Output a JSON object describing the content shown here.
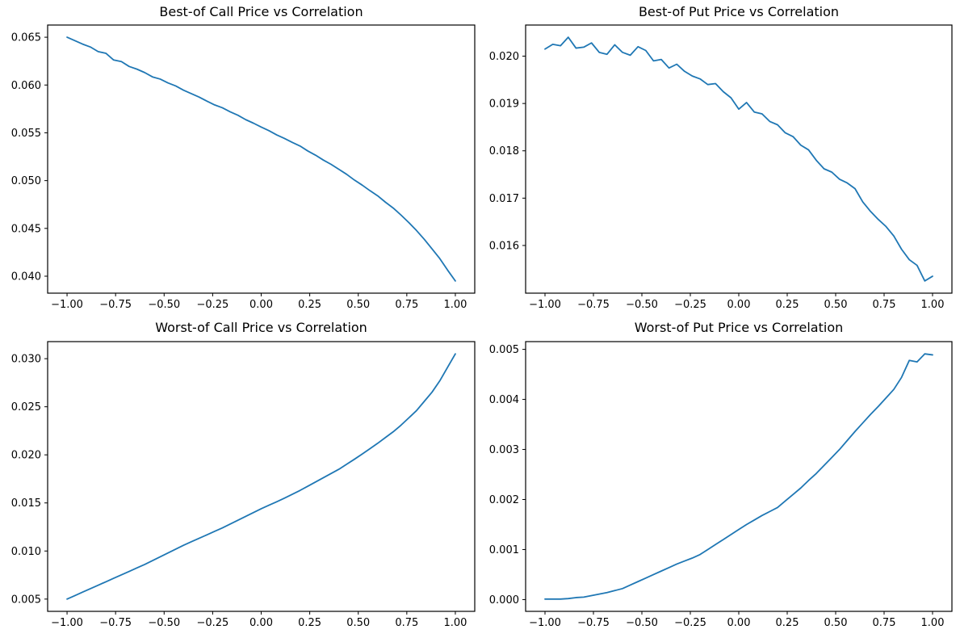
{
  "figure": {
    "background_color": "#ffffff",
    "text_color": "#000000",
    "line_color": "#1f77b4"
  },
  "chart_data": {
    "type": "line",
    "layout_note": "2x2 grid of subplots, no grid lines, no legend, shared x variable (correlation)",
    "xlabel": "",
    "xlim": [
      -1.1,
      1.1
    ],
    "xticks": [
      -1.0,
      -0.75,
      -0.5,
      -0.25,
      0.0,
      0.25,
      0.5,
      0.75,
      1.0
    ],
    "xtick_labels": [
      "−1.00",
      "−0.75",
      "−0.50",
      "−0.25",
      "0.00",
      "0.25",
      "0.50",
      "0.75",
      "1.00"
    ],
    "x": [
      -1.0,
      -0.96,
      -0.92,
      -0.88,
      -0.84,
      -0.8,
      -0.76,
      -0.72,
      -0.68,
      -0.64,
      -0.6,
      -0.56,
      -0.52,
      -0.48,
      -0.44,
      -0.4,
      -0.36,
      -0.32,
      -0.28,
      -0.24,
      -0.2,
      -0.16,
      -0.12,
      -0.08,
      -0.04,
      0.0,
      0.04,
      0.08,
      0.12,
      0.16,
      0.2,
      0.24,
      0.28,
      0.32,
      0.36,
      0.4,
      0.44,
      0.48,
      0.52,
      0.56,
      0.6,
      0.64,
      0.68,
      0.72,
      0.76,
      0.8,
      0.84,
      0.88,
      0.92,
      0.96,
      1.0
    ],
    "series": [
      {
        "id": "best-of-call",
        "title": "Best-of Call Price vs Correlation",
        "line_color": "#1f77b4",
        "ylim": [
          0.038225,
          0.066275
        ],
        "yticks": [
          0.04,
          0.045,
          0.05,
          0.055,
          0.06,
          0.065
        ],
        "ytick_labels": [
          "0.040",
          "0.045",
          "0.050",
          "0.055",
          "0.060",
          "0.065"
        ],
        "y": [
          0.065,
          0.06464,
          0.06428,
          0.06398,
          0.0635,
          0.06332,
          0.06262,
          0.06245,
          0.06194,
          0.06166,
          0.0613,
          0.06085,
          0.06062,
          0.06022,
          0.0599,
          0.05946,
          0.0591,
          0.05874,
          0.05832,
          0.05792,
          0.05762,
          0.0572,
          0.05684,
          0.05638,
          0.05601,
          0.0556,
          0.05522,
          0.05478,
          0.05441,
          0.054,
          0.05362,
          0.0531,
          0.05266,
          0.05215,
          0.0517,
          0.05118,
          0.05066,
          0.05006,
          0.04953,
          0.04895,
          0.04841,
          0.04774,
          0.04713,
          0.0464,
          0.04562,
          0.04478,
          0.04386,
          0.04286,
          0.04184,
          0.04064,
          0.0395
        ]
      },
      {
        "id": "best-of-put",
        "title": "Best-of Put Price vs Correlation",
        "line_color": "#1f77b4",
        "ylim": [
          0.0149925,
          0.0206575
        ],
        "yticks": [
          0.016,
          0.017,
          0.018,
          0.019,
          0.02
        ],
        "ytick_labels": [
          "0.016",
          "0.017",
          "0.018",
          "0.019",
          "0.020"
        ],
        "y": [
          0.02015,
          0.02025,
          0.02022,
          0.0204,
          0.02017,
          0.02019,
          0.02028,
          0.02008,
          0.02004,
          0.02024,
          0.02008,
          0.02002,
          0.0202,
          0.02012,
          0.0199,
          0.01993,
          0.01975,
          0.01983,
          0.01968,
          0.01958,
          0.01952,
          0.0194,
          0.01942,
          0.01925,
          0.01912,
          0.01888,
          0.01902,
          0.01882,
          0.01878,
          0.01862,
          0.01855,
          0.01838,
          0.0183,
          0.01812,
          0.01802,
          0.0178,
          0.01762,
          0.01755,
          0.0174,
          0.01732,
          0.0172,
          0.01692,
          0.01672,
          0.01655,
          0.0164,
          0.0162,
          0.01592,
          0.0157,
          0.01558,
          0.01525,
          0.01535
        ]
      },
      {
        "id": "worst-of-call",
        "title": "Worst-of Call Price vs Correlation",
        "line_color": "#1f77b4",
        "ylim": [
          0.003725,
          0.031775
        ],
        "yticks": [
          0.005,
          0.01,
          0.015,
          0.02,
          0.025,
          0.03
        ],
        "ytick_labels": [
          "0.005",
          "0.010",
          "0.015",
          "0.020",
          "0.025",
          "0.030"
        ],
        "y": [
          0.005,
          0.00536,
          0.00572,
          0.00608,
          0.00644,
          0.0068,
          0.00716,
          0.00752,
          0.00788,
          0.00824,
          0.0086,
          0.009,
          0.0094,
          0.0098,
          0.0102,
          0.0106,
          0.01096,
          0.01132,
          0.01168,
          0.01204,
          0.0124,
          0.0128,
          0.0132,
          0.0136,
          0.014,
          0.0144,
          0.01476,
          0.01512,
          0.0155,
          0.0159,
          0.0163,
          0.01674,
          0.01718,
          0.01762,
          0.01806,
          0.0185,
          0.01902,
          0.01954,
          0.02008,
          0.02064,
          0.0212,
          0.0218,
          0.0224,
          0.02308,
          0.02384,
          0.0246,
          0.02556,
          0.02652,
          0.0277,
          0.0291,
          0.0305
        ]
      },
      {
        "id": "worst-of-put",
        "title": "Worst-of Put Price vs Correlation",
        "line_color": "#1f77b4",
        "ylim": [
          -0.000235,
          0.005155
        ],
        "yticks": [
          0.0,
          0.001,
          0.002,
          0.003,
          0.004,
          0.005
        ],
        "ytick_labels": [
          "0.000",
          "0.001",
          "0.002",
          "0.003",
          "0.004",
          "0.005"
        ],
        "y": [
          1e-05,
          1e-05,
          1e-05,
          2e-05,
          4e-05,
          5e-05,
          8e-05,
          0.00011,
          0.00014,
          0.00018,
          0.00022,
          0.00029,
          0.00036,
          0.00043,
          0.0005,
          0.00057,
          0.00064,
          0.00071,
          0.00077,
          0.00083,
          0.0009,
          0.001,
          0.0011,
          0.0012,
          0.0013,
          0.0014,
          0.0015,
          0.00159,
          0.00168,
          0.00176,
          0.00184,
          0.00197,
          0.0021,
          0.00223,
          0.00238,
          0.00252,
          0.00268,
          0.00284,
          0.003,
          0.00318,
          0.00336,
          0.00353,
          0.0037,
          0.00386,
          0.00403,
          0.0042,
          0.00444,
          0.00478,
          0.00475,
          0.00491,
          0.00489
        ]
      }
    ]
  }
}
